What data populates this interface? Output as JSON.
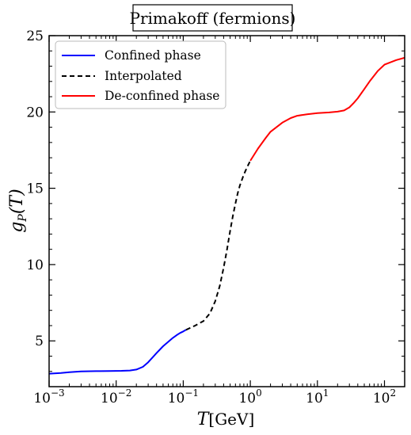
{
  "chart_data": {
    "type": "line",
    "title": "Primakoff (fermions)",
    "xlabel": {
      "main": "T",
      "unit": "[GeV]"
    },
    "ylabel": {
      "main": "g",
      "sub": "P",
      "arg": "(T)"
    },
    "xscale": "log",
    "xlim": [
      0.001,
      200
    ],
    "ylim": [
      2,
      25
    ],
    "x_major_ticks": [
      {
        "value": 0.001,
        "base": "10",
        "exp": "−3"
      },
      {
        "value": 0.01,
        "base": "10",
        "exp": "−2"
      },
      {
        "value": 0.1,
        "base": "10",
        "exp": "−1"
      },
      {
        "value": 1,
        "base": "10",
        "exp": "0"
      },
      {
        "value": 10,
        "base": "10",
        "exp": "1"
      },
      {
        "value": 100,
        "base": "10",
        "exp": "2"
      }
    ],
    "y_ticks": [
      5,
      10,
      15,
      20,
      25
    ],
    "grid": false,
    "legend_position": "top-left",
    "series": [
      {
        "name": "Confined phase",
        "color": "#0000ff",
        "dash": "solid",
        "x": [
          0.001,
          0.0015,
          0.002,
          0.003,
          0.005,
          0.008,
          0.012,
          0.016,
          0.02,
          0.025,
          0.03,
          0.04,
          0.05,
          0.06,
          0.07,
          0.08,
          0.09,
          0.1,
          0.11
        ],
        "y": [
          2.85,
          2.9,
          2.95,
          3.0,
          3.02,
          3.03,
          3.04,
          3.06,
          3.12,
          3.3,
          3.6,
          4.2,
          4.65,
          4.95,
          5.2,
          5.38,
          5.52,
          5.62,
          5.72
        ]
      },
      {
        "name": "Interpolated",
        "color": "#000000",
        "dash": "dashed",
        "x": [
          0.11,
          0.15,
          0.2,
          0.25,
          0.3,
          0.35,
          0.4,
          0.45,
          0.5,
          0.55,
          0.6,
          0.65,
          0.7,
          0.8,
          0.9,
          1.0
        ],
        "y": [
          5.72,
          6.0,
          6.3,
          6.8,
          7.6,
          8.6,
          9.8,
          11.0,
          12.2,
          13.2,
          14.0,
          14.7,
          15.2,
          15.9,
          16.4,
          16.8
        ]
      },
      {
        "name": "De-confined phase",
        "color": "#ff0000",
        "dash": "solid",
        "x": [
          1.0,
          1.3,
          1.7,
          2,
          3,
          4,
          5,
          7,
          10,
          15,
          20,
          25,
          30,
          35,
          40,
          50,
          60,
          80,
          100,
          150,
          200
        ],
        "y": [
          16.8,
          17.6,
          18.3,
          18.7,
          19.3,
          19.6,
          19.75,
          19.85,
          19.92,
          19.97,
          20.02,
          20.1,
          20.3,
          20.6,
          20.9,
          21.5,
          22.0,
          22.7,
          23.1,
          23.4,
          23.55
        ]
      }
    ]
  }
}
